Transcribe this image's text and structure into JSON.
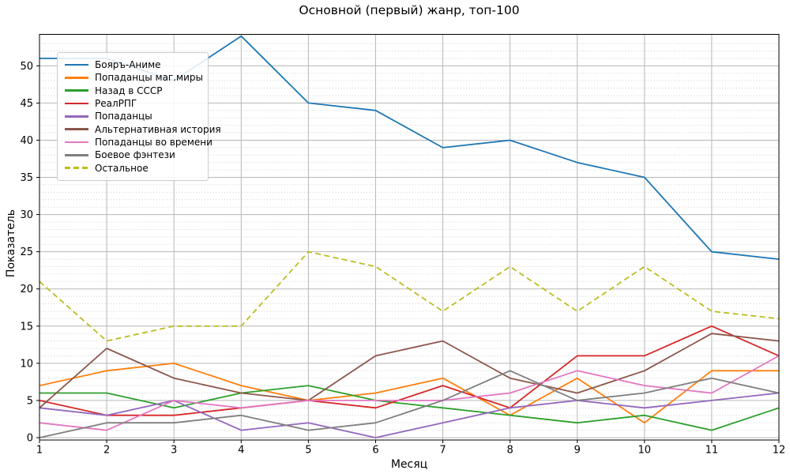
{
  "chart_data": {
    "type": "line",
    "title": "Основной (первый) жанр, топ-100",
    "xlabel": "Месяц",
    "ylabel": "Показатель",
    "x": [
      1,
      2,
      3,
      4,
      5,
      6,
      7,
      8,
      9,
      10,
      11,
      12
    ],
    "x_tick_labels": [
      "1",
      "2",
      "3",
      "4",
      "5",
      "6",
      "7",
      "8",
      "9",
      "10",
      "11",
      "12"
    ],
    "y_tick_labels": [
      "0",
      "5",
      "10",
      "15",
      "20",
      "25",
      "30",
      "35",
      "40",
      "45",
      "50"
    ],
    "y_tick_values": [
      0,
      5,
      10,
      15,
      20,
      25,
      30,
      35,
      40,
      45,
      50
    ],
    "xlim": [
      1,
      12
    ],
    "ylim": [
      -0.32,
      54.23
    ],
    "grid": "major solid + minor dotted horizontal",
    "legend_position": "upper-left",
    "series": [
      {
        "name": "Бояръ-Аниме",
        "color": "#1f77b4",
        "dashed": false,
        "values": [
          51,
          51,
          48,
          54,
          45,
          44,
          39,
          40,
          37,
          35,
          25,
          24
        ]
      },
      {
        "name": "Попаданцы маг.миры",
        "color": "#ff7f0e",
        "dashed": false,
        "values": [
          7,
          9,
          10,
          7,
          5,
          6,
          8,
          3,
          8,
          2,
          9,
          9
        ]
      },
      {
        "name": "Назад в СССР",
        "color": "#2ca02c",
        "dashed": false,
        "values": [
          6,
          6,
          4,
          6,
          7,
          5,
          4,
          3,
          2,
          3,
          1,
          4
        ]
      },
      {
        "name": "РеалРПГ",
        "color": "#d62728",
        "dashed": false,
        "values": [
          5,
          3,
          3,
          4,
          5,
          4,
          7,
          4,
          11,
          11,
          15,
          11
        ]
      },
      {
        "name": "Попаданцы",
        "color": "#9467bd",
        "dashed": false,
        "values": [
          4,
          3,
          5,
          1,
          2,
          0,
          2,
          4,
          5,
          4,
          5,
          6
        ]
      },
      {
        "name": "Альтернативная история",
        "color": "#8c564b",
        "dashed": false,
        "values": [
          4,
          12,
          8,
          6,
          5,
          11,
          13,
          8,
          6,
          9,
          14,
          13
        ]
      },
      {
        "name": "Попаданцы во времени",
        "color": "#e377c2",
        "dashed": false,
        "values": [
          2,
          1,
          5,
          4,
          5,
          5,
          5,
          6,
          9,
          7,
          6,
          11
        ]
      },
      {
        "name": "Боевое фэнтези",
        "color": "#7f7f7f",
        "dashed": false,
        "values": [
          0,
          2,
          2,
          3,
          1,
          2,
          5,
          9,
          5,
          6,
          8,
          6
        ]
      },
      {
        "name": "Остальное",
        "color": "#bcbd22",
        "dashed": true,
        "values": [
          21,
          13,
          15,
          15,
          25,
          23,
          17,
          23,
          17,
          23,
          17,
          16
        ]
      }
    ]
  }
}
